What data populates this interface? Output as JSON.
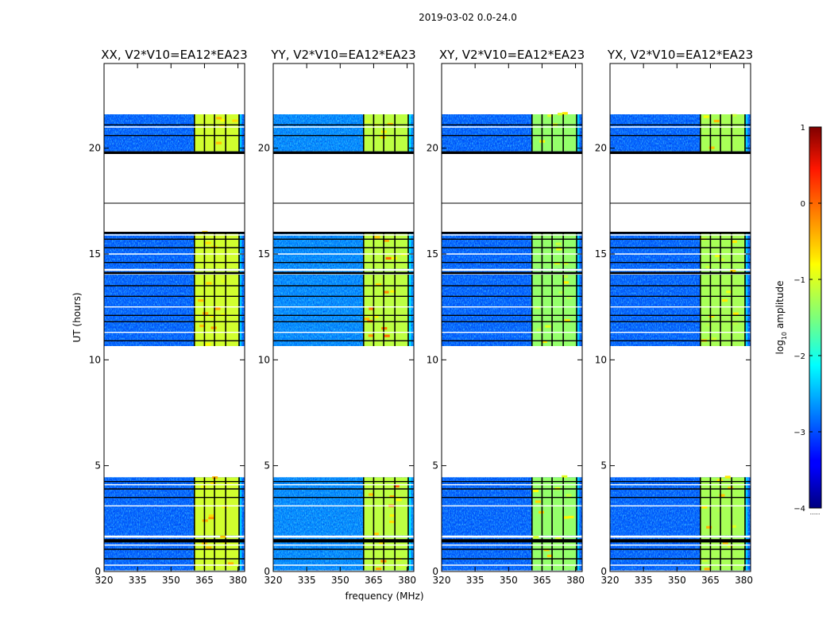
{
  "chart_data": {
    "type": "heatmap",
    "suptitle": "2019-03-02 0.0-24.0",
    "xlabel": "frequency (MHz)",
    "ylabel": "UT (hours)",
    "xlim": [
      320,
      383
    ],
    "ylim": [
      0,
      24
    ],
    "xticks": [
      320,
      335,
      350,
      365,
      380
    ],
    "yticks": [
      0,
      5,
      10,
      15,
      20
    ],
    "colorbar": {
      "label": "log10 amplitude",
      "label_base": "log",
      "label_sub": "10",
      "label_rest": " amplitude",
      "range": [
        -4,
        1
      ],
      "ticks": [
        -4,
        -3,
        -2,
        -1,
        0,
        1
      ],
      "tick_labels": [
        "−4",
        "−3",
        "−2",
        "−1",
        "0",
        "1"
      ],
      "colormap": "jet"
    },
    "data_blocks_ut": [
      [
        0.05,
        1.6
      ],
      [
        1.7,
        4.45
      ],
      [
        10.65,
        14.2
      ],
      [
        14.3,
        16.05
      ],
      [
        19.85,
        21.6
      ]
    ],
    "flag_lines_ut": [
      0.3,
      0.6,
      1.05,
      1.25,
      1.4,
      1.5,
      3.1,
      3.5,
      3.9,
      4.1,
      4.25,
      10.9,
      11.3,
      11.8,
      12.1,
      12.5,
      13.0,
      13.5,
      14.05,
      14.1,
      14.6,
      15.0,
      15.3,
      15.7,
      15.9,
      16.0,
      17.4,
      19.75,
      19.8,
      20.6,
      21.0,
      21.1
    ],
    "high_band_mhz": [
      360.5,
      380.5
    ],
    "channel_gaps_mhz": [
      360.5,
      365,
      369.5,
      374.5,
      380.5
    ],
    "panels": [
      {
        "title": "XX, V2*V10=EA12*EA23",
        "baseline_log_amp": -2.9,
        "band_log_amp": -1.1,
        "peak_log_amp": -0.3
      },
      {
        "title": "YY, V2*V10=EA12*EA23",
        "baseline_log_amp": -2.7,
        "band_log_amp": -1.2,
        "peak_log_amp": -0.1
      },
      {
        "title": "XY, V2*V10=EA12*EA23",
        "baseline_log_amp": -2.9,
        "band_log_amp": -1.4,
        "peak_log_amp": -0.6
      },
      {
        "title": "YX, V2*V10=EA12*EA23",
        "baseline_log_amp": -2.9,
        "band_log_amp": -1.3,
        "peak_log_amp": -0.5
      }
    ],
    "cursor_marker": "....."
  }
}
